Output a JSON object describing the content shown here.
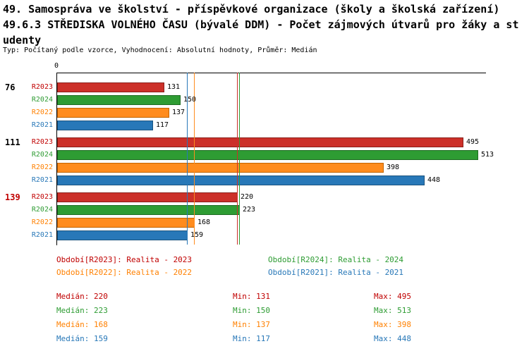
{
  "header": {
    "title_line1": "49. Samospráva ve školství - příspěvkové organizace (školy a školská zařízení)",
    "title_line2": "49.6.3 STŘEDISKA VOLNÉHO ČASU (bývalé DDM) - Počet zájmových útvarů pro žáky a st",
    "title_line3": "udenty",
    "meta": "Typ: Počítaný podle vzorce, Vyhodnocení: Absolutní hodnoty, Průměr: Medián"
  },
  "chart_data": {
    "type": "bar",
    "orientation": "horizontal",
    "x_origin_label": "0",
    "xlim": [
      0,
      520
    ],
    "grid": false,
    "series": [
      {
        "id": "R2023",
        "color": "#cc3029",
        "border": "#8a1f1a",
        "text_color": "#c00000"
      },
      {
        "id": "R2024",
        "color": "#2e9c33",
        "border": "#1e6b22",
        "text_color": "#2e9c33"
      },
      {
        "id": "R2022",
        "color": "#ff8c1e",
        "border": "#c26400",
        "text_color": "#ff8000"
      },
      {
        "id": "R2021",
        "color": "#2878b8",
        "border": "#1a537f",
        "text_color": "#2878b8"
      }
    ],
    "groups": [
      {
        "label": "76",
        "label_color": "#000000",
        "values": {
          "R2023": 131,
          "R2024": 150,
          "R2022": 137,
          "R2021": 117
        }
      },
      {
        "label": "111",
        "label_color": "#000000",
        "values": {
          "R2023": 495,
          "R2024": 513,
          "R2022": 398,
          "R2021": 448
        }
      },
      {
        "label": "139",
        "label_color": "#c00000",
        "values": {
          "R2023": 220,
          "R2024": 223,
          "R2022": 168,
          "R2021": 159
        }
      }
    ],
    "median_lines": [
      {
        "series": "R2023",
        "value": 220
      },
      {
        "series": "R2024",
        "value": 223
      },
      {
        "series": "R2022",
        "value": 168
      },
      {
        "series": "R2021",
        "value": 159
      }
    ]
  },
  "legend": [
    {
      "text": "Období[R2023]: Realita - 2023",
      "color": "#c00000"
    },
    {
      "text": "Období[R2024]: Realita - 2024",
      "color": "#2e9c33"
    },
    {
      "text": "Období[R2022]: Realita - 2022",
      "color": "#ff8000"
    },
    {
      "text": "Období[R2021]: Realita - 2021",
      "color": "#2878b8"
    }
  ],
  "stats": [
    {
      "median": "Medián: 220",
      "min": "Min: 131",
      "max": "Max: 495",
      "color": "#c00000"
    },
    {
      "median": "Medián: 223",
      "min": "Min: 150",
      "max": "Max: 513",
      "color": "#2e9c33"
    },
    {
      "median": "Medián: 168",
      "min": "Min: 137",
      "max": "Max: 398",
      "color": "#ff8000"
    },
    {
      "median": "Medián: 159",
      "min": "Min: 117",
      "max": "Max: 448",
      "color": "#2878b8"
    }
  ]
}
